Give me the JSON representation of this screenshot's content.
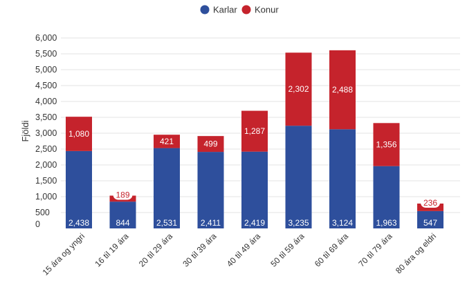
{
  "chart_data": {
    "type": "bar",
    "stacked": true,
    "title": "",
    "xlabel": "",
    "ylabel": "Fjöldi",
    "ylim": [
      0,
      6000
    ],
    "yticks": [
      0,
      500,
      1000,
      1500,
      2000,
      2500,
      3000,
      3500,
      4000,
      4500,
      5000,
      5500,
      6000
    ],
    "ytick_labels": [
      "0",
      "500",
      "1,000",
      "1,500",
      "2,000",
      "2,500",
      "3,000",
      "3,500",
      "4,000",
      "4,500",
      "5,000",
      "5,500",
      "6,000"
    ],
    "grid": true,
    "legend_position": "top-center",
    "categories": [
      "15 ára og yngri",
      "16 til 19 ára",
      "20 til 29 ára",
      "30 til 39 ára",
      "40 til 49 ára",
      "50 til 59 ára",
      "60 til 69 ára",
      "70 til 79 ára",
      "80 ára og eldri"
    ],
    "series": [
      {
        "name": "Karlar",
        "color": "#2e4f9c",
        "values": [
          2438,
          844,
          2531,
          2411,
          2419,
          3235,
          3124,
          1963,
          547
        ],
        "labels": [
          "2,438",
          "844",
          "2,531",
          "2,411",
          "2,419",
          "3,235",
          "3,124",
          "1,963",
          "547"
        ]
      },
      {
        "name": "Konur",
        "color": "#c5232c",
        "values": [
          1080,
          189,
          421,
          499,
          1287,
          2302,
          2488,
          1356,
          236
        ],
        "labels": [
          "1,080",
          "189",
          "421",
          "499",
          "1,287",
          "2,302",
          "2,488",
          "1,356",
          "236"
        ]
      }
    ]
  }
}
